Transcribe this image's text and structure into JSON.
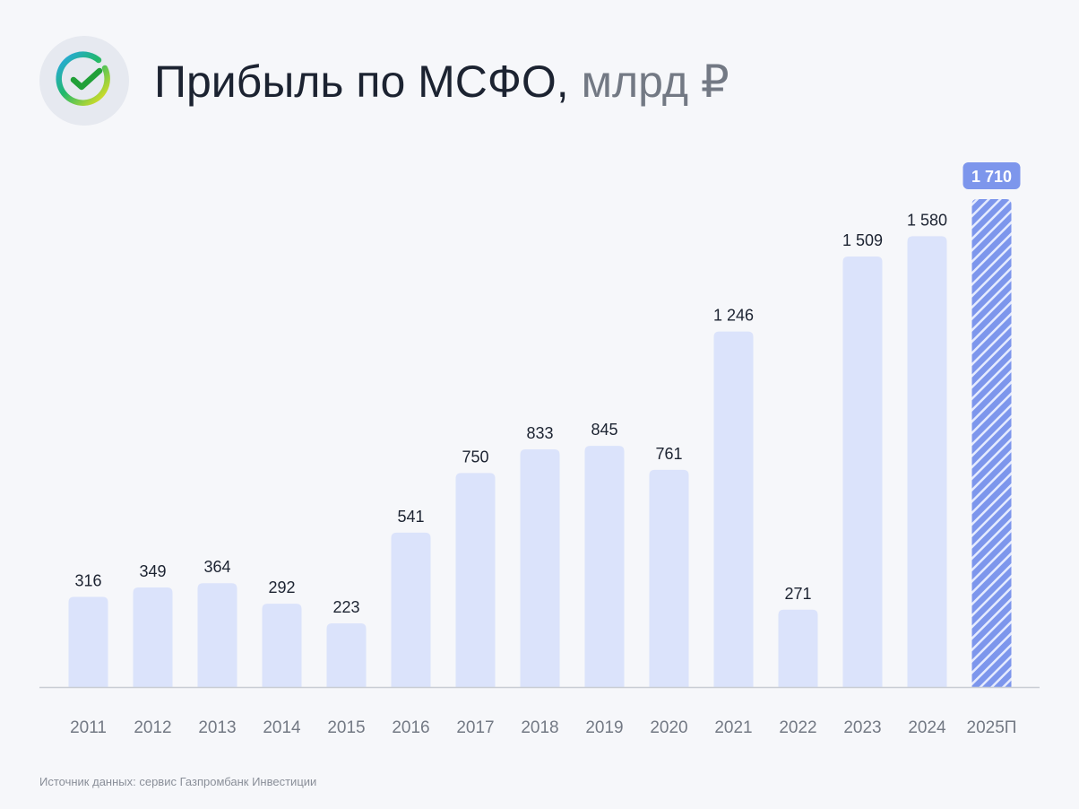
{
  "header": {
    "logo_icon": "sber-check-logo-icon",
    "title_main": "Прибыль по МСФО,",
    "title_unit": "млрд ₽"
  },
  "footer": {
    "source": "Источник данных: сервис Газпромбанк Инвестиции"
  },
  "colors": {
    "bar": "#dbe3fb",
    "forecast_bar": "#7d96ec",
    "forecast_stripe": "#e5ebff",
    "forecast_badge": "#7d96ec",
    "value_text": "#1c2331",
    "axis_text": "#737984",
    "baseline": "#c9cdd4"
  },
  "chart_data": {
    "type": "bar",
    "title": "Прибыль по МСФО, млрд ₽",
    "categories": [
      "2011",
      "2012",
      "2013",
      "2014",
      "2015",
      "2016",
      "2017",
      "2018",
      "2019",
      "2020",
      "2021",
      "2022",
      "2023",
      "2024",
      "2025П"
    ],
    "values": [
      316,
      349,
      364,
      292,
      223,
      541,
      750,
      833,
      845,
      761,
      1246,
      271,
      1509,
      1580,
      1710
    ],
    "value_labels": [
      "316",
      "349",
      "364",
      "292",
      "223",
      "541",
      "750",
      "833",
      "845",
      "761",
      "1 246",
      "271",
      "1 509",
      "1 580",
      "1 710"
    ],
    "forecast_index": 14,
    "ylim": [
      0,
      1710
    ],
    "grid": false,
    "legend": "none"
  }
}
